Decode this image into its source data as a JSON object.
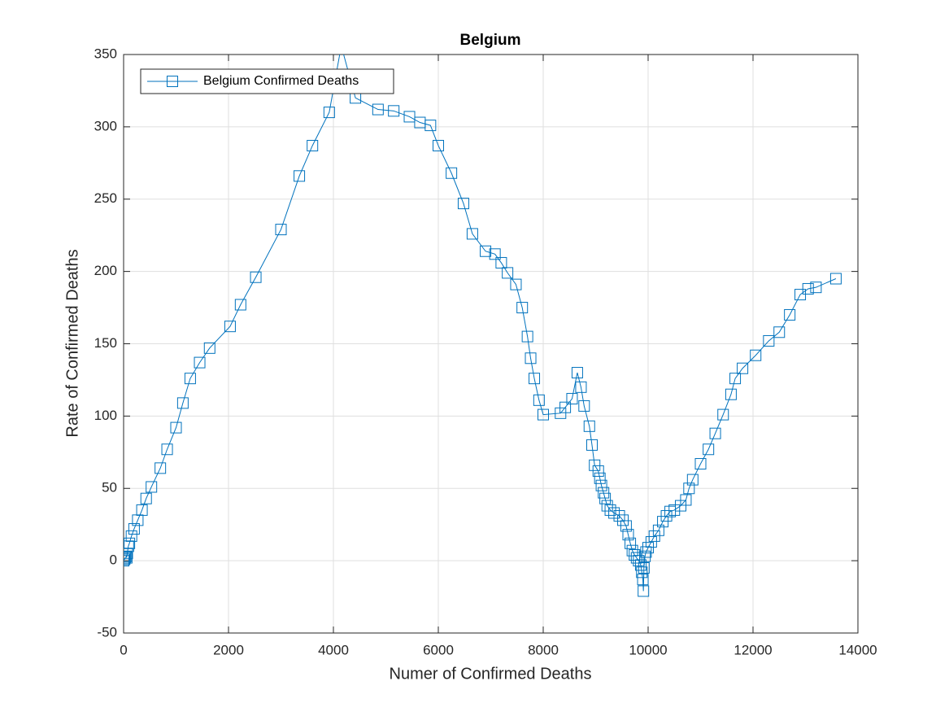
{
  "chart_data": {
    "type": "line",
    "title": "Belgium",
    "x_label": "Numer of Confirmed Deaths",
    "y_label": "Rate of Confirmed Deaths",
    "x": [
      0,
      10,
      20,
      30,
      50,
      60,
      70,
      90,
      110,
      150,
      200,
      270,
      350,
      430,
      530,
      700,
      830,
      1000,
      1130,
      1270,
      1450,
      1640,
      2030,
      2230,
      2520,
      3000,
      3350,
      3600,
      3920,
      4150,
      4420,
      4850,
      5150,
      5450,
      5650,
      5850,
      6000,
      6250,
      6480,
      6650,
      6900,
      7080,
      7200,
      7320,
      7480,
      7600,
      7700,
      7760,
      7830,
      7920,
      8000,
      8330,
      8420,
      8550,
      8650,
      8720,
      8780,
      8880,
      8930,
      8980,
      9050,
      9080,
      9110,
      9150,
      9180,
      9220,
      9280,
      9350,
      9450,
      9520,
      9580,
      9620,
      9660,
      9700,
      9740,
      9780,
      9820,
      9860,
      9880,
      9900,
      9910,
      9920,
      9940,
      9960,
      10000,
      10060,
      10120,
      10200,
      10280,
      10350,
      10420,
      10500,
      10620,
      10720,
      10780,
      10850,
      11000,
      11150,
      11280,
      11430,
      11580,
      11660,
      11800,
      12050,
      12300,
      12500,
      12700,
      12900,
      13050,
      13200,
      13580
    ],
    "series": [
      {
        "name": "Belgium Confirmed Deaths",
        "color": "#0072bd",
        "marker": "square",
        "values": [
          0,
          1,
          1,
          2,
          3,
          2,
          5,
          10,
          12,
          17,
          22,
          28,
          35,
          43,
          51,
          64,
          77,
          92,
          109,
          126,
          137,
          147,
          162,
          177,
          196,
          229,
          266,
          287,
          310,
          356,
          320,
          312,
          311,
          307,
          303,
          301,
          287,
          268,
          247,
          226,
          214,
          212,
          206,
          199,
          191,
          175,
          155,
          140,
          126,
          111,
          101,
          102,
          106,
          112,
          130,
          120,
          107,
          93,
          80,
          66,
          62,
          57,
          52,
          47,
          43,
          38,
          35,
          33,
          31,
          28,
          24,
          18,
          12,
          7,
          4,
          2,
          0,
          -3,
          -8,
          -13,
          -21,
          -5,
          3,
          6,
          9,
          13,
          17,
          21,
          27,
          31,
          34,
          35,
          38,
          42,
          50,
          56,
          67,
          77,
          88,
          101,
          115,
          126,
          133,
          142,
          152,
          158,
          170,
          184,
          188,
          189,
          195
        ]
      }
    ],
    "xlim": [
      0,
      14000
    ],
    "xticks": [
      0,
      2000,
      4000,
      6000,
      8000,
      10000,
      12000,
      14000
    ],
    "ylim": [
      -50,
      350
    ],
    "yticks": [
      -50,
      0,
      50,
      100,
      150,
      200,
      250,
      300,
      350
    ],
    "grid": true,
    "legend": "northwest"
  }
}
